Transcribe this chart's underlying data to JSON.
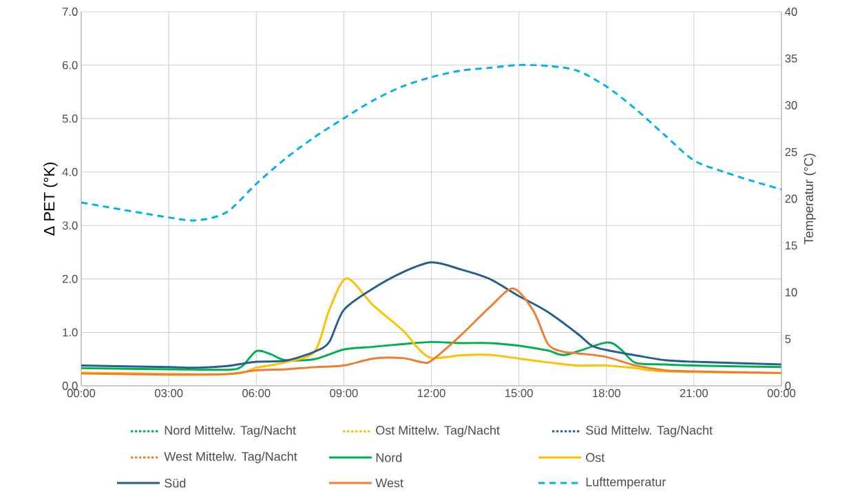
{
  "chart_data": {
    "type": "line",
    "ylabel": "Δ PET (°K)",
    "y2label": "Temperatur (°C)",
    "xlim": [
      0,
      24
    ],
    "xticks": [
      {
        "value": 0,
        "label": "00:00"
      },
      {
        "value": 3,
        "label": "03:00"
      },
      {
        "value": 6,
        "label": "06:00"
      },
      {
        "value": 9,
        "label": "09:00"
      },
      {
        "value": 12,
        "label": "12:00"
      },
      {
        "value": 15,
        "label": "15:00"
      },
      {
        "value": 18,
        "label": "18:00"
      },
      {
        "value": 21,
        "label": "21:00"
      },
      {
        "value": 24,
        "label": "00:00"
      }
    ],
    "ylim": [
      0,
      7
    ],
    "yticks": [
      {
        "value": 0,
        "label": "0.0"
      },
      {
        "value": 1,
        "label": "1.0"
      },
      {
        "value": 2,
        "label": "2.0"
      },
      {
        "value": 3,
        "label": "3.0"
      },
      {
        "value": 4,
        "label": "4.0"
      },
      {
        "value": 5,
        "label": "5.0"
      },
      {
        "value": 6,
        "label": "6.0"
      },
      {
        "value": 7,
        "label": "7.0"
      }
    ],
    "y2lim": [
      0,
      40
    ],
    "y2ticks": [
      0,
      5,
      10,
      15,
      20,
      25,
      30,
      35,
      40
    ],
    "grid": true,
    "legend": "bottom",
    "marker": "none",
    "series": [
      {
        "name": "Nord Mittelw. Tag/Nacht",
        "color": "#00b050",
        "line_style": "dotted"
      },
      {
        "name": "Ost Mittelw. Tag/Nacht",
        "color": "#ffc000",
        "line_style": "dotted"
      },
      {
        "name": "Süd Mittelw. Tag/Nacht",
        "color": "#255e91",
        "line_style": "dotted"
      },
      {
        "name": "West Mittelw. Tag/Nacht",
        "color": "#ed7d31",
        "line_style": "dotted"
      },
      {
        "name": "Nord",
        "color": "#00b050",
        "line_style": "solid",
        "x": [
          0,
          3,
          5,
          5.5,
          6,
          6.5,
          7,
          8,
          9,
          10,
          11,
          12,
          13,
          14,
          15,
          16,
          16.6,
          18,
          18.5,
          19,
          20,
          21,
          24
        ],
        "values": [
          0.33,
          0.31,
          0.3,
          0.36,
          0.65,
          0.59,
          0.48,
          0.5,
          0.68,
          0.73,
          0.78,
          0.82,
          0.8,
          0.8,
          0.75,
          0.66,
          0.58,
          0.81,
          0.68,
          0.43,
          0.4,
          0.38,
          0.35
        ]
      },
      {
        "name": "Ost",
        "color": "#ffc000",
        "line_style": "solid",
        "x": [
          0,
          5,
          6,
          7,
          8,
          8.5,
          9.1,
          10,
          11,
          11.5,
          12,
          13,
          14,
          15,
          16,
          17,
          18,
          19,
          20,
          24
        ],
        "values": [
          0.25,
          0.22,
          0.34,
          0.44,
          0.64,
          1.42,
          2.01,
          1.51,
          1.05,
          0.73,
          0.52,
          0.57,
          0.58,
          0.51,
          0.44,
          0.38,
          0.38,
          0.33,
          0.27,
          0.24
        ]
      },
      {
        "name": "Süd",
        "color": "#255e91",
        "line_style": "solid",
        "x": [
          0,
          3,
          4,
          5,
          6,
          7,
          8,
          8.5,
          9,
          10,
          11,
          12,
          13,
          14,
          15,
          16,
          17,
          17.5,
          18,
          19,
          20,
          21,
          24
        ],
        "values": [
          0.38,
          0.35,
          0.34,
          0.37,
          0.45,
          0.47,
          0.64,
          0.82,
          1.42,
          1.82,
          2.12,
          2.31,
          2.18,
          2.0,
          1.68,
          1.38,
          0.98,
          0.75,
          0.67,
          0.57,
          0.48,
          0.45,
          0.4
        ]
      },
      {
        "name": "West",
        "color": "#ed7d31",
        "line_style": "solid",
        "x": [
          0,
          3,
          5,
          6,
          7,
          8,
          9,
          10,
          11,
          11.7,
          12,
          13,
          14,
          14.8,
          15.5,
          16,
          16.5,
          17,
          18,
          19,
          20,
          21,
          24
        ],
        "values": [
          0.23,
          0.21,
          0.22,
          0.29,
          0.31,
          0.35,
          0.38,
          0.51,
          0.52,
          0.44,
          0.47,
          0.94,
          1.47,
          1.82,
          1.4,
          0.78,
          0.64,
          0.61,
          0.54,
          0.38,
          0.29,
          0.27,
          0.24
        ]
      },
      {
        "name": "Lufttemperatur",
        "color": "#00b0f0",
        "line_style": "dashed",
        "axis": "y2",
        "x": [
          0,
          3,
          4,
          5,
          6,
          7,
          8,
          9,
          10,
          11,
          12,
          13,
          14,
          15,
          16,
          17,
          18,
          19,
          20,
          21,
          22,
          23,
          24
        ],
        "values": [
          19.6,
          18.0,
          17.7,
          18.6,
          21.6,
          24.3,
          26.6,
          28.6,
          30.5,
          32.0,
          33.0,
          33.7,
          34.0,
          34.3,
          34.2,
          33.7,
          32.0,
          29.6,
          26.8,
          24.1,
          22.9,
          21.9,
          21.0
        ]
      }
    ]
  }
}
